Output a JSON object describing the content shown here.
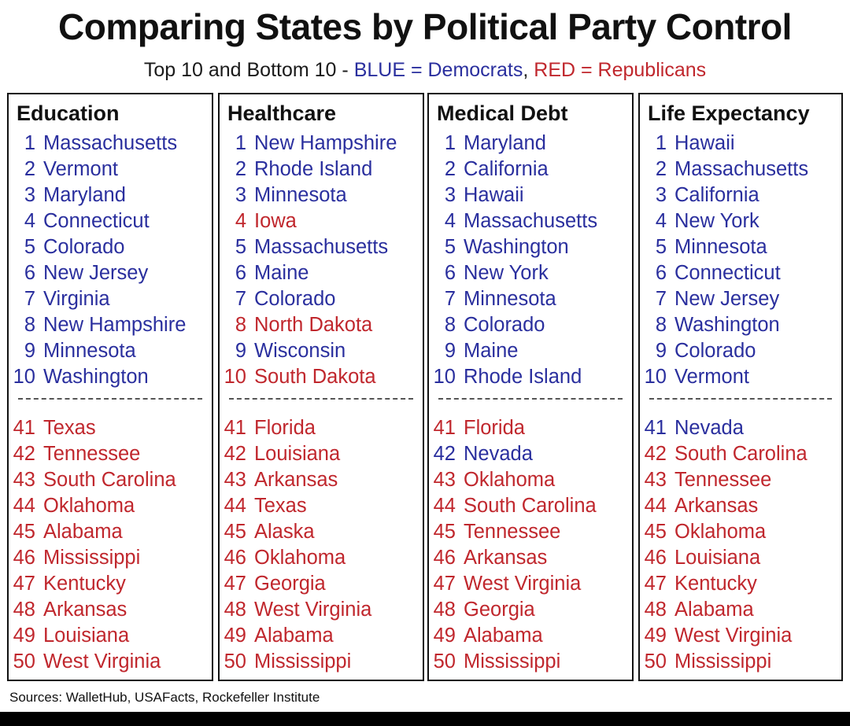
{
  "title": "Comparing States by Political Party Control",
  "subtitle": {
    "prefix": "Top 10 and Bottom 10 - ",
    "blue_text": "BLUE = Democrats",
    "separator": ", ",
    "red_text": "RED = Republicans"
  },
  "colors": {
    "democrat": "#2a2f9e",
    "republican": "#c0272d"
  },
  "columns": [
    {
      "heading": "Education",
      "top": [
        {
          "rank": "1",
          "state": "Massachusetts",
          "party": "blue"
        },
        {
          "rank": "2",
          "state": "Vermont",
          "party": "blue"
        },
        {
          "rank": "3",
          "state": "Maryland",
          "party": "blue"
        },
        {
          "rank": "4",
          "state": "Connecticut",
          "party": "blue"
        },
        {
          "rank": "5",
          "state": "Colorado",
          "party": "blue"
        },
        {
          "rank": "6",
          "state": "New Jersey",
          "party": "blue"
        },
        {
          "rank": "7",
          "state": "Virginia",
          "party": "blue"
        },
        {
          "rank": "8",
          "state": "New Hampshire",
          "party": "blue"
        },
        {
          "rank": "9",
          "state": "Minnesota",
          "party": "blue"
        },
        {
          "rank": "10",
          "state": "Washington",
          "party": "blue"
        }
      ],
      "bottom": [
        {
          "rank": "41",
          "state": "Texas",
          "party": "red"
        },
        {
          "rank": "42",
          "state": "Tennessee",
          "party": "red"
        },
        {
          "rank": "43",
          "state": "South Carolina",
          "party": "red"
        },
        {
          "rank": "44",
          "state": "Oklahoma",
          "party": "red"
        },
        {
          "rank": "45",
          "state": "Alabama",
          "party": "red"
        },
        {
          "rank": "46",
          "state": "Mississippi",
          "party": "red"
        },
        {
          "rank": "47",
          "state": "Kentucky",
          "party": "red"
        },
        {
          "rank": "48",
          "state": "Arkansas",
          "party": "red"
        },
        {
          "rank": "49",
          "state": "Louisiana",
          "party": "red"
        },
        {
          "rank": "50",
          "state": "West Virginia",
          "party": "red"
        }
      ]
    },
    {
      "heading": "Healthcare",
      "top": [
        {
          "rank": "1",
          "state": "New Hampshire",
          "party": "blue"
        },
        {
          "rank": "2",
          "state": "Rhode Island",
          "party": "blue"
        },
        {
          "rank": "3",
          "state": "Minnesota",
          "party": "blue"
        },
        {
          "rank": "4",
          "state": "Iowa",
          "party": "red"
        },
        {
          "rank": "5",
          "state": "Massachusetts",
          "party": "blue"
        },
        {
          "rank": "6",
          "state": "Maine",
          "party": "blue"
        },
        {
          "rank": "7",
          "state": "Colorado",
          "party": "blue"
        },
        {
          "rank": "8",
          "state": "North Dakota",
          "party": "red"
        },
        {
          "rank": "9",
          "state": "Wisconsin",
          "party": "blue"
        },
        {
          "rank": "10",
          "state": "South Dakota",
          "party": "red"
        }
      ],
      "bottom": [
        {
          "rank": "41",
          "state": "Florida",
          "party": "red"
        },
        {
          "rank": "42",
          "state": "Louisiana",
          "party": "red"
        },
        {
          "rank": "43",
          "state": "Arkansas",
          "party": "red"
        },
        {
          "rank": "44",
          "state": "Texas",
          "party": "red"
        },
        {
          "rank": "45",
          "state": "Alaska",
          "party": "red"
        },
        {
          "rank": "46",
          "state": "Oklahoma",
          "party": "red"
        },
        {
          "rank": "47",
          "state": "Georgia",
          "party": "red"
        },
        {
          "rank": "48",
          "state": "West Virginia",
          "party": "red"
        },
        {
          "rank": "49",
          "state": "Alabama",
          "party": "red"
        },
        {
          "rank": "50",
          "state": "Mississippi",
          "party": "red"
        }
      ]
    },
    {
      "heading": "Medical Debt",
      "top": [
        {
          "rank": "1",
          "state": "Maryland",
          "party": "blue"
        },
        {
          "rank": "2",
          "state": "California",
          "party": "blue"
        },
        {
          "rank": "3",
          "state": "Hawaii",
          "party": "blue"
        },
        {
          "rank": "4",
          "state": "Massachusetts",
          "party": "blue"
        },
        {
          "rank": "5",
          "state": "Washington",
          "party": "blue"
        },
        {
          "rank": "6",
          "state": "New York",
          "party": "blue"
        },
        {
          "rank": "7",
          "state": "Minnesota",
          "party": "blue"
        },
        {
          "rank": "8",
          "state": "Colorado",
          "party": "blue"
        },
        {
          "rank": "9",
          "state": "Maine",
          "party": "blue"
        },
        {
          "rank": "10",
          "state": "Rhode Island",
          "party": "blue"
        }
      ],
      "bottom": [
        {
          "rank": "41",
          "state": "Florida",
          "party": "red"
        },
        {
          "rank": "42",
          "state": "Nevada",
          "party": "blue"
        },
        {
          "rank": "43",
          "state": "Oklahoma",
          "party": "red"
        },
        {
          "rank": "44",
          "state": "South Carolina",
          "party": "red"
        },
        {
          "rank": "45",
          "state": "Tennessee",
          "party": "red"
        },
        {
          "rank": "46",
          "state": "Arkansas",
          "party": "red"
        },
        {
          "rank": "47",
          "state": "West Virginia",
          "party": "red"
        },
        {
          "rank": "48",
          "state": "Georgia",
          "party": "red"
        },
        {
          "rank": "49",
          "state": "Alabama",
          "party": "red"
        },
        {
          "rank": "50",
          "state": "Mississippi",
          "party": "red"
        }
      ]
    },
    {
      "heading": "Life Expectancy",
      "top": [
        {
          "rank": "1",
          "state": "Hawaii",
          "party": "blue"
        },
        {
          "rank": "2",
          "state": "Massachusetts",
          "party": "blue"
        },
        {
          "rank": "3",
          "state": "California",
          "party": "blue"
        },
        {
          "rank": "4",
          "state": "New York",
          "party": "blue"
        },
        {
          "rank": "5",
          "state": "Minnesota",
          "party": "blue"
        },
        {
          "rank": "6",
          "state": "Connecticut",
          "party": "blue"
        },
        {
          "rank": "7",
          "state": "New Jersey",
          "party": "blue"
        },
        {
          "rank": "8",
          "state": "Washington",
          "party": "blue"
        },
        {
          "rank": "9",
          "state": "Colorado",
          "party": "blue"
        },
        {
          "rank": "10",
          "state": "Vermont",
          "party": "blue"
        }
      ],
      "bottom": [
        {
          "rank": "41",
          "state": "Nevada",
          "party": "blue"
        },
        {
          "rank": "42",
          "state": "South Carolina",
          "party": "red"
        },
        {
          "rank": "43",
          "state": "Tennessee",
          "party": "red"
        },
        {
          "rank": "44",
          "state": "Arkansas",
          "party": "red"
        },
        {
          "rank": "45",
          "state": "Oklahoma",
          "party": "red"
        },
        {
          "rank": "46",
          "state": "Louisiana",
          "party": "red"
        },
        {
          "rank": "47",
          "state": "Kentucky",
          "party": "red"
        },
        {
          "rank": "48",
          "state": "Alabama",
          "party": "red"
        },
        {
          "rank": "49",
          "state": "West Virginia",
          "party": "red"
        },
        {
          "rank": "50",
          "state": "Mississippi",
          "party": "red"
        }
      ]
    }
  ],
  "sources": "Sources: WalletHub, USAFacts, Rockefeller Institute"
}
